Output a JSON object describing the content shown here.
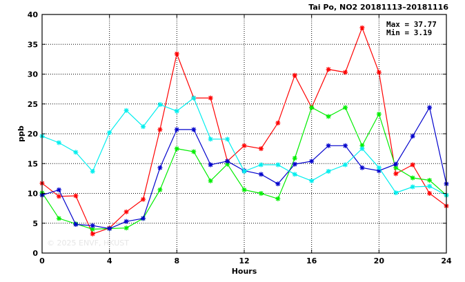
{
  "chart_data": {
    "type": "line",
    "title": "Tai Po, NO2 20181113–20181116",
    "xlabel": "Hours",
    "ylabel": "ppb",
    "xlim": [
      0,
      24
    ],
    "ylim": [
      0,
      40
    ],
    "xticks": [
      0,
      4,
      8,
      12,
      16,
      20,
      24
    ],
    "yticks": [
      0,
      5,
      10,
      15,
      20,
      25,
      30,
      35,
      40
    ],
    "grid": true,
    "stats": {
      "max": "Max = 37.77",
      "min": "Min =  3.19"
    },
    "watermark": "© 2025  ENVF, HKUST",
    "x": [
      0,
      1,
      2,
      3,
      4,
      5,
      6,
      7,
      8,
      9,
      10,
      11,
      12,
      13,
      14,
      15,
      16,
      17,
      18,
      19,
      20,
      21,
      22,
      23,
      24
    ],
    "series": [
      {
        "color": "#ff0000",
        "values": [
          11.7,
          9.5,
          9.6,
          3.2,
          4.2,
          6.9,
          9.0,
          20.7,
          33.4,
          26.0,
          26.0,
          15.4,
          18.0,
          17.5,
          21.8,
          29.8,
          24.4,
          30.8,
          30.3,
          37.77,
          30.3,
          13.3,
          14.8,
          10.0,
          7.9
        ]
      },
      {
        "color": "#00ee00",
        "values": [
          10.1,
          5.8,
          4.9,
          4.0,
          4.1,
          4.2,
          5.8,
          10.6,
          17.5,
          17.0,
          12.1,
          14.9,
          10.6,
          10.0,
          9.1,
          15.9,
          24.4,
          22.9,
          24.4,
          18.0,
          23.3,
          14.3,
          12.6,
          12.2,
          9.7
        ]
      },
      {
        "color": "#0000cc",
        "values": [
          9.7,
          10.6,
          4.8,
          4.6,
          4.1,
          5.3,
          5.8,
          14.3,
          20.7,
          20.7,
          14.8,
          15.4,
          13.8,
          13.2,
          11.6,
          14.9,
          15.4,
          18.0,
          18.0,
          14.3,
          13.8,
          14.9,
          19.6,
          24.4,
          11.6
        ]
      },
      {
        "color": "#00eeee",
        "values": [
          19.6,
          18.5,
          16.9,
          13.7,
          20.2,
          23.9,
          21.2,
          24.9,
          23.8,
          26.0,
          19.1,
          19.1,
          13.7,
          14.8,
          14.8,
          13.2,
          12.1,
          13.7,
          14.8,
          17.5,
          14.3,
          10.1,
          11.1,
          11.2,
          9.7
        ]
      }
    ]
  }
}
